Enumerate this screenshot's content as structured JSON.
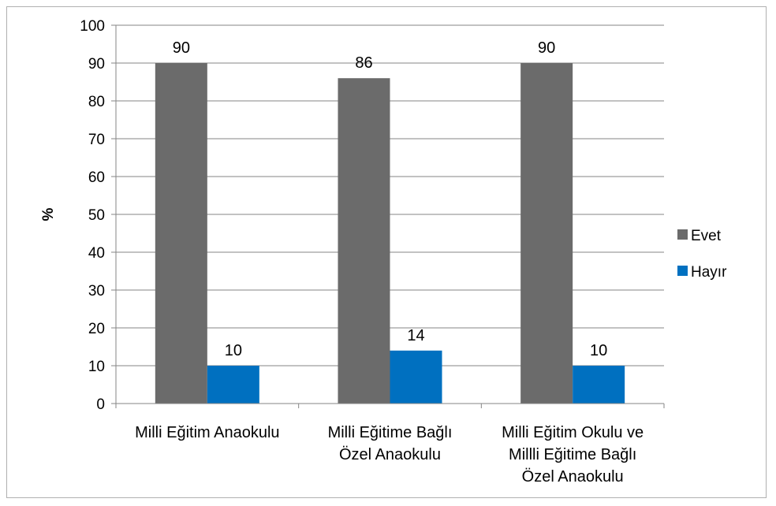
{
  "chart_data": {
    "type": "bar",
    "title": "",
    "xlabel": "",
    "ylabel": "%",
    "ylim": [
      0,
      100
    ],
    "yticks": [
      0,
      10,
      20,
      30,
      40,
      50,
      60,
      70,
      80,
      90,
      100
    ],
    "grid": true,
    "legend_position": "right",
    "categories": [
      [
        "Milli Eğitim Anaokulu"
      ],
      [
        "Milli Eğitime Bağlı",
        "Özel Anaokulu"
      ],
      [
        "Milli Eğitim Okulu ve",
        "Millli Eğitime Bağlı",
        "Özel Anaokulu"
      ]
    ],
    "series": [
      {
        "name": "Evet",
        "values": [
          90,
          86,
          90
        ],
        "color": "#6b6b6b"
      },
      {
        "name": "Hayır",
        "values": [
          10,
          14,
          10
        ],
        "color": "#0070c0"
      }
    ]
  }
}
